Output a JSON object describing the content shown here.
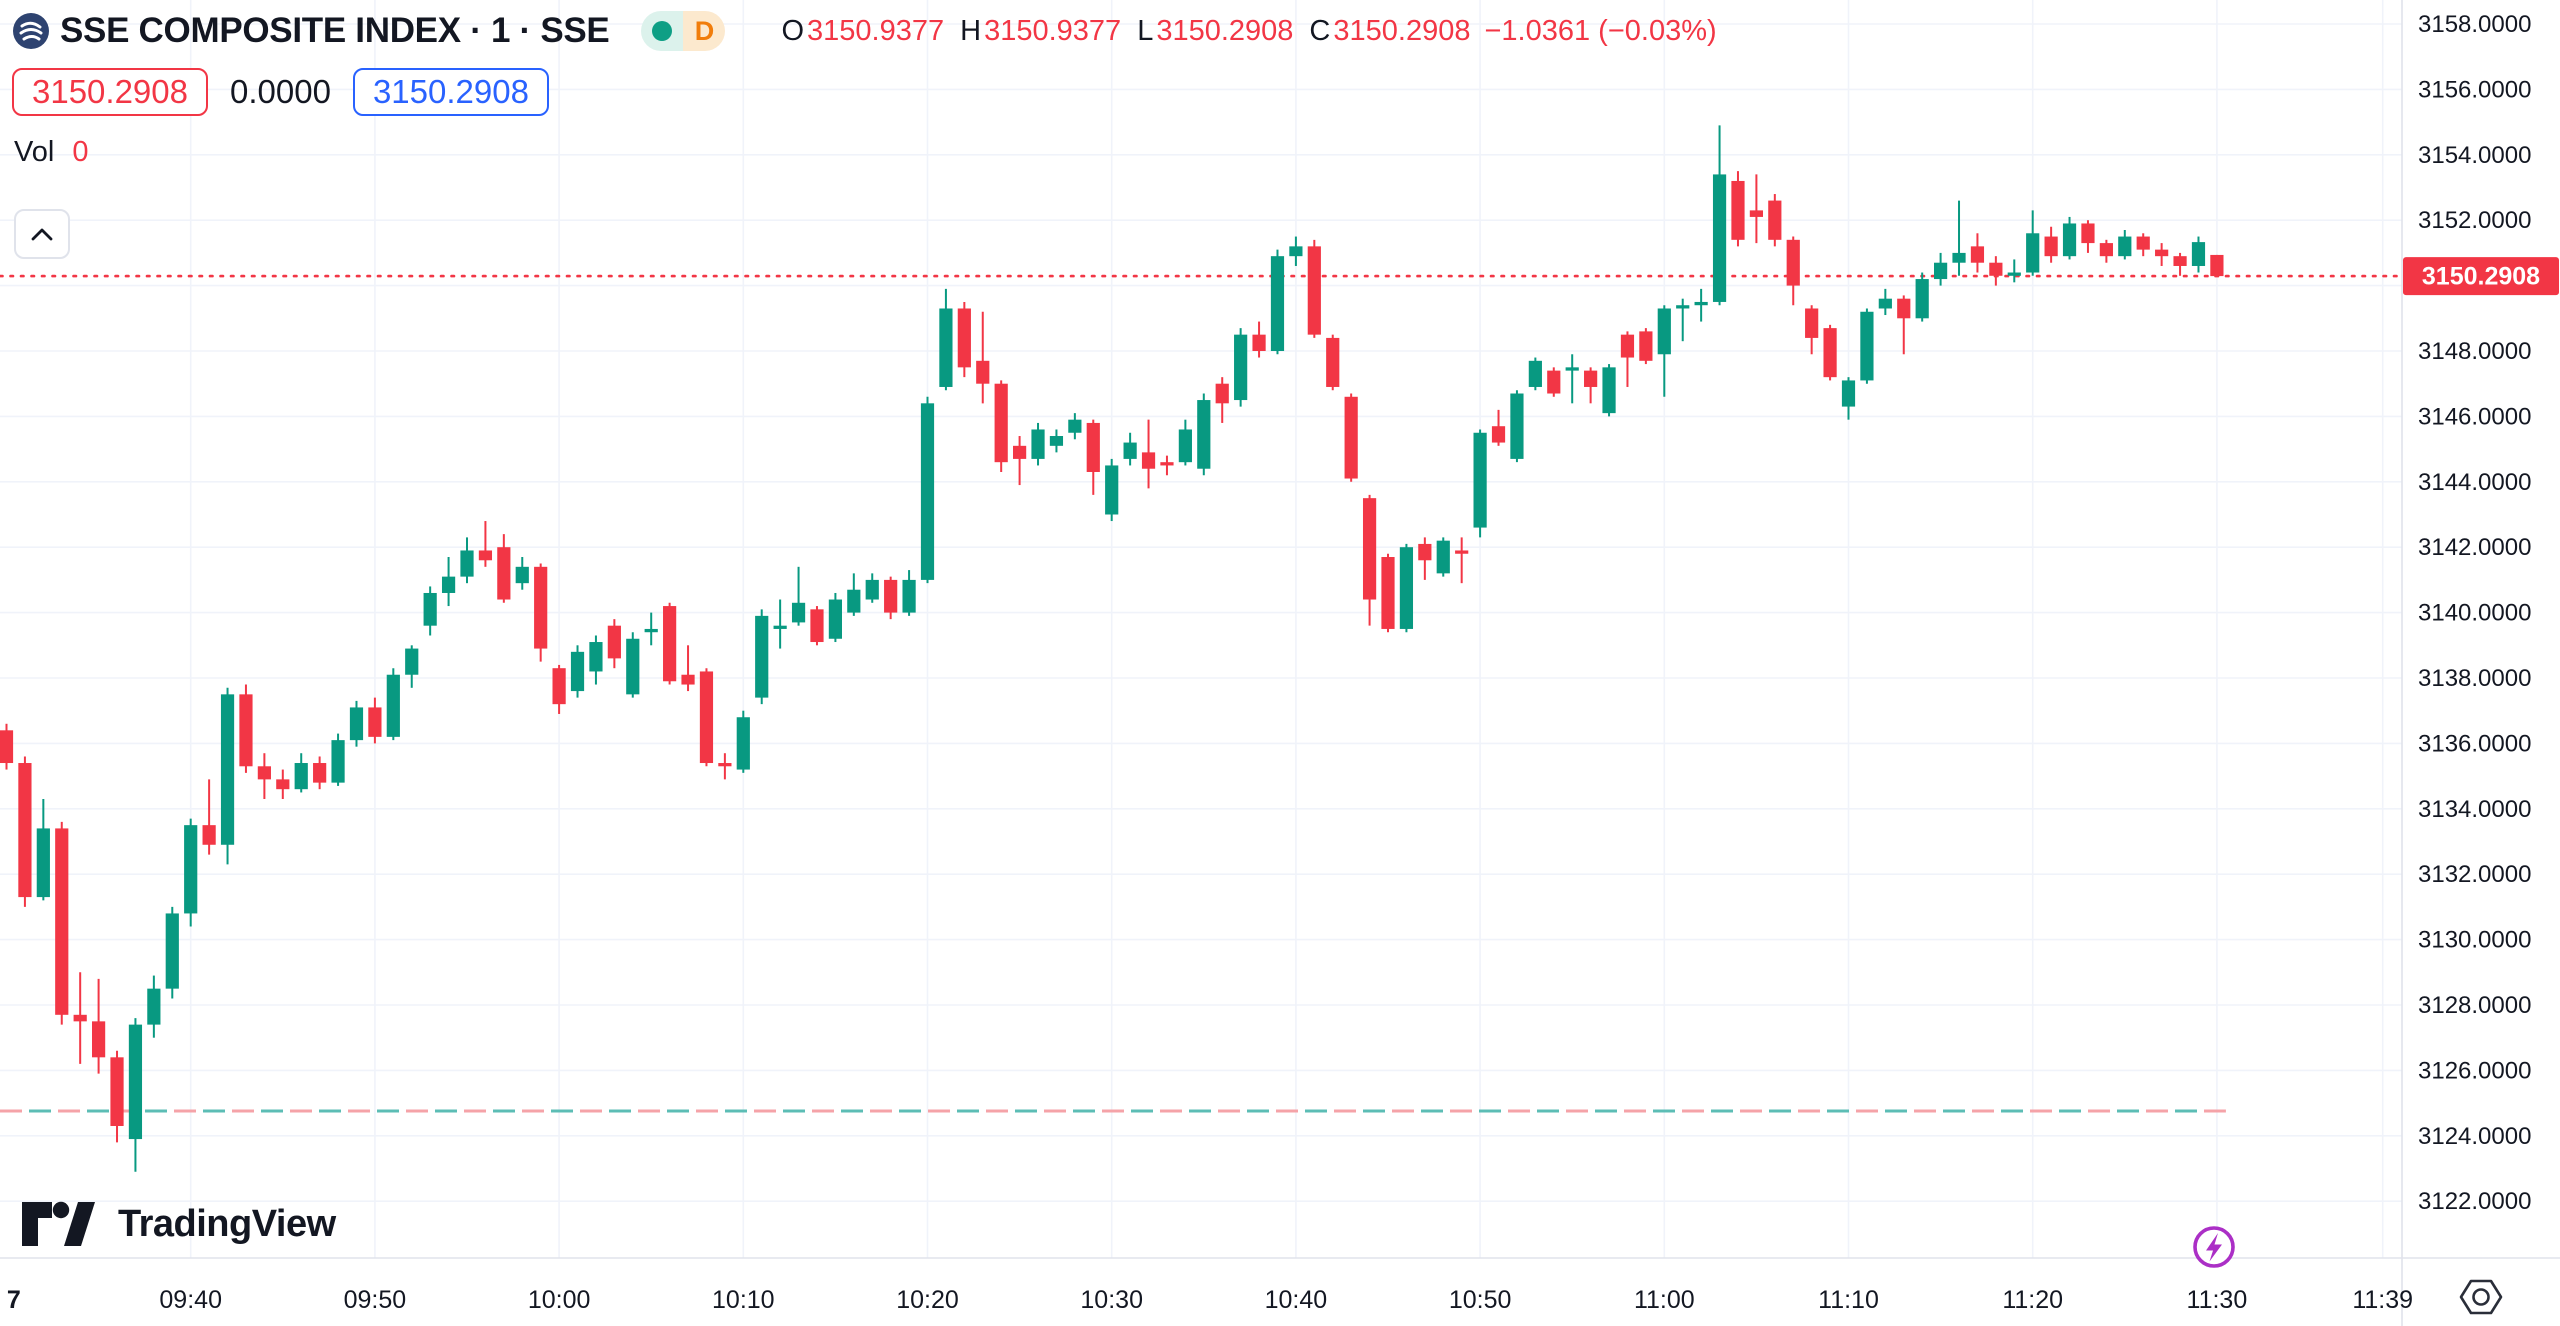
{
  "header": {
    "symbol_title": "SSE COMPOSITE INDEX · 1 · SSE",
    "market_status_letter": "D",
    "ohlc": {
      "o_label": "O",
      "o": "3150.9377",
      "h_label": "H",
      "h": "3150.9377",
      "l_label": "L",
      "l": "3150.2908",
      "c_label": "C",
      "c": "3150.2908",
      "change": "−1.0361 (−0.03%)"
    },
    "bid_badge": "3150.2908",
    "spread": "0.0000",
    "ask_badge": "3150.2908",
    "vol_label": "Vol",
    "vol_value": "0"
  },
  "footer": {
    "brand": "TradingView"
  },
  "colors": {
    "up": "#089981",
    "down": "#F23645",
    "blue": "#2962FF",
    "text": "#131722",
    "grid": "#F0F3FA",
    "axis_border": "#E0E3EB",
    "baseline_teal": "#5CBDB5",
    "baseline_pink": "#F5A3A8",
    "purple": "#AB2FC6",
    "icon_dark": "#2A2E39"
  },
  "chart_data": {
    "type": "candlestick",
    "title": "SSE COMPOSITE INDEX 1-minute candles",
    "legend_position": "top-left",
    "grid": true,
    "session_start": "09:30",
    "last_price": 3150.2908,
    "last_price_label": "3150.2908",
    "baseline_price": 3124.76,
    "y_axis_top": 3158,
    "y_axis_bottom": 3122,
    "y_ticks": [
      {
        "label": "3158.0000",
        "value": 3158
      },
      {
        "label": "3156.0000",
        "value": 3156
      },
      {
        "label": "3154.0000",
        "value": 3154
      },
      {
        "label": "3152.0000",
        "value": 3152
      },
      {
        "label": "3150.0000",
        "value": 3150
      },
      {
        "label": "3148.0000",
        "value": 3148
      },
      {
        "label": "3146.0000",
        "value": 3146
      },
      {
        "label": "3144.0000",
        "value": 3144
      },
      {
        "label": "3142.0000",
        "value": 3142
      },
      {
        "label": "3140.0000",
        "value": 3140
      },
      {
        "label": "3138.0000",
        "value": 3138
      },
      {
        "label": "3136.0000",
        "value": 3136
      },
      {
        "label": "3134.0000",
        "value": 3134
      },
      {
        "label": "3132.0000",
        "value": 3132
      },
      {
        "label": "3130.0000",
        "value": 3130
      },
      {
        "label": "3128.0000",
        "value": 3128
      },
      {
        "label": "3126.0000",
        "value": 3126
      },
      {
        "label": "3124.0000",
        "value": 3124
      },
      {
        "label": "3122.0000",
        "value": 3122
      }
    ],
    "x_ticks": [
      {
        "label": "7",
        "minute": 0.4,
        "grid": false,
        "bold": true
      },
      {
        "label": "09:40",
        "minute": 10,
        "grid": true
      },
      {
        "label": "09:50",
        "minute": 20,
        "grid": true
      },
      {
        "label": "10:00",
        "minute": 30,
        "grid": true
      },
      {
        "label": "10:10",
        "minute": 40,
        "grid": true
      },
      {
        "label": "10:20",
        "minute": 50,
        "grid": true
      },
      {
        "label": "10:30",
        "minute": 60,
        "grid": true
      },
      {
        "label": "10:40",
        "minute": 70,
        "grid": true
      },
      {
        "label": "10:50",
        "minute": 80,
        "grid": true
      },
      {
        "label": "11:00",
        "minute": 90,
        "grid": true
      },
      {
        "label": "11:10",
        "minute": 100,
        "grid": true
      },
      {
        "label": "11:20",
        "minute": 110,
        "grid": true
      },
      {
        "label": "11:30",
        "minute": 120,
        "grid": true
      },
      {
        "label": "11:39",
        "minute": 129,
        "grid": true
      }
    ],
    "candles": [
      [
        "09:30",
        3136.4,
        3136.6,
        3135.2,
        3135.4
      ],
      [
        "09:31",
        3135.4,
        3135.6,
        3131.0,
        3131.3
      ],
      [
        "09:32",
        3131.3,
        3134.3,
        3131.2,
        3133.4
      ],
      [
        "09:33",
        3133.4,
        3133.6,
        3127.4,
        3127.7
      ],
      [
        "09:34",
        3127.7,
        3129.0,
        3126.2,
        3127.5
      ],
      [
        "09:35",
        3127.5,
        3128.8,
        3125.9,
        3126.4
      ],
      [
        "09:36",
        3126.4,
        3126.6,
        3123.8,
        3124.3
      ],
      [
        "09:37",
        3123.9,
        3127.6,
        3122.9,
        3127.4
      ],
      [
        "09:38",
        3127.4,
        3128.9,
        3127.0,
        3128.5
      ],
      [
        "09:39",
        3128.5,
        3131.0,
        3128.2,
        3130.8
      ],
      [
        "09:40",
        3130.8,
        3133.7,
        3130.4,
        3133.5
      ],
      [
        "09:41",
        3133.5,
        3134.9,
        3132.6,
        3132.9
      ],
      [
        "09:42",
        3132.9,
        3137.7,
        3132.3,
        3137.5
      ],
      [
        "09:43",
        3137.5,
        3137.8,
        3135.1,
        3135.3
      ],
      [
        "09:44",
        3135.3,
        3135.7,
        3134.3,
        3134.9
      ],
      [
        "09:45",
        3134.9,
        3135.2,
        3134.3,
        3134.6
      ],
      [
        "09:46",
        3134.6,
        3135.7,
        3134.5,
        3135.4
      ],
      [
        "09:47",
        3135.4,
        3135.6,
        3134.6,
        3134.8
      ],
      [
        "09:48",
        3134.8,
        3136.3,
        3134.7,
        3136.1
      ],
      [
        "09:49",
        3136.1,
        3137.3,
        3135.9,
        3137.1
      ],
      [
        "09:50",
        3137.1,
        3137.4,
        3136.0,
        3136.2
      ],
      [
        "09:51",
        3136.2,
        3138.3,
        3136.1,
        3138.1
      ],
      [
        "09:52",
        3138.1,
        3139.0,
        3137.7,
        3138.9
      ],
      [
        "09:53",
        3139.6,
        3140.8,
        3139.3,
        3140.6
      ],
      [
        "09:54",
        3140.6,
        3141.7,
        3140.2,
        3141.1
      ],
      [
        "09:55",
        3141.1,
        3142.3,
        3140.9,
        3141.9
      ],
      [
        "09:56",
        3141.9,
        3142.8,
        3141.4,
        3141.6
      ],
      [
        "09:57",
        3142.0,
        3142.4,
        3140.3,
        3140.4
      ],
      [
        "09:58",
        3140.9,
        3141.7,
        3140.7,
        3141.4
      ],
      [
        "09:59",
        3141.4,
        3141.5,
        3138.5,
        3138.9
      ],
      [
        "10:00",
        3138.3,
        3138.4,
        3136.9,
        3137.2
      ],
      [
        "10:01",
        3137.6,
        3139.0,
        3137.4,
        3138.8
      ],
      [
        "10:02",
        3138.2,
        3139.3,
        3137.8,
        3139.1
      ],
      [
        "10:03",
        3139.6,
        3139.8,
        3138.3,
        3138.6
      ],
      [
        "10:04",
        3137.5,
        3139.4,
        3137.4,
        3139.2
      ],
      [
        "10:05",
        3139.4,
        3140.0,
        3139.0,
        3139.5
      ],
      [
        "10:06",
        3140.2,
        3140.3,
        3137.8,
        3137.9
      ],
      [
        "10:07",
        3138.1,
        3139.0,
        3137.6,
        3137.8
      ],
      [
        "10:08",
        3138.2,
        3138.3,
        3135.3,
        3135.4
      ],
      [
        "10:09",
        3135.4,
        3135.7,
        3134.9,
        3135.3
      ],
      [
        "10:10",
        3135.2,
        3137.0,
        3135.1,
        3136.8
      ],
      [
        "10:11",
        3137.4,
        3140.1,
        3137.2,
        3139.9
      ],
      [
        "10:12",
        3139.5,
        3140.4,
        3138.9,
        3139.6
      ],
      [
        "10:13",
        3139.7,
        3141.4,
        3139.6,
        3140.3
      ],
      [
        "10:14",
        3140.1,
        3140.2,
        3139.0,
        3139.1
      ],
      [
        "10:15",
        3139.2,
        3140.6,
        3139.1,
        3140.4
      ],
      [
        "10:16",
        3140.0,
        3141.2,
        3139.9,
        3140.7
      ],
      [
        "10:17",
        3140.4,
        3141.2,
        3140.3,
        3141.0
      ],
      [
        "10:18",
        3141.0,
        3141.1,
        3139.8,
        3140.0
      ],
      [
        "10:19",
        3140.0,
        3141.3,
        3139.9,
        3141.0
      ],
      [
        "10:20",
        3141.0,
        3146.6,
        3140.9,
        3146.4
      ],
      [
        "10:21",
        3146.9,
        3149.9,
        3146.8,
        3149.3
      ],
      [
        "10:22",
        3149.3,
        3149.5,
        3147.2,
        3147.5
      ],
      [
        "10:23",
        3147.7,
        3149.2,
        3146.4,
        3147.0
      ],
      [
        "10:24",
        3147.0,
        3147.1,
        3144.3,
        3144.6
      ],
      [
        "10:25",
        3145.1,
        3145.4,
        3143.9,
        3144.7
      ],
      [
        "10:26",
        3144.7,
        3145.8,
        3144.5,
        3145.6
      ],
      [
        "10:27",
        3145.1,
        3145.6,
        3144.9,
        3145.4
      ],
      [
        "10:28",
        3145.5,
        3146.1,
        3145.3,
        3145.9
      ],
      [
        "10:29",
        3145.8,
        3145.9,
        3143.6,
        3144.3
      ],
      [
        "10:30",
        3143.0,
        3144.7,
        3142.8,
        3144.5
      ],
      [
        "10:31",
        3144.7,
        3145.5,
        3144.5,
        3145.2
      ],
      [
        "10:32",
        3144.9,
        3145.9,
        3143.8,
        3144.4
      ],
      [
        "10:33",
        3144.6,
        3144.8,
        3144.2,
        3144.5
      ],
      [
        "10:34",
        3144.6,
        3145.9,
        3144.5,
        3145.6
      ],
      [
        "10:35",
        3144.4,
        3146.7,
        3144.2,
        3146.5
      ],
      [
        "10:36",
        3147.0,
        3147.2,
        3145.8,
        3146.4
      ],
      [
        "10:37",
        3146.5,
        3148.7,
        3146.3,
        3148.5
      ],
      [
        "10:38",
        3148.5,
        3148.9,
        3147.8,
        3148.0
      ],
      [
        "10:39",
        3148.0,
        3151.1,
        3147.9,
        3150.9
      ],
      [
        "10:40",
        3150.9,
        3151.5,
        3150.6,
        3151.2
      ],
      [
        "10:41",
        3151.2,
        3151.4,
        3148.4,
        3148.5
      ],
      [
        "10:42",
        3148.4,
        3148.5,
        3146.8,
        3146.9
      ],
      [
        "10:43",
        3146.6,
        3146.7,
        3144.0,
        3144.1
      ],
      [
        "10:44",
        3143.5,
        3143.6,
        3139.6,
        3140.4
      ],
      [
        "10:45",
        3141.7,
        3141.8,
        3139.4,
        3139.5
      ],
      [
        "10:46",
        3139.5,
        3142.1,
        3139.4,
        3142.0
      ],
      [
        "10:47",
        3142.1,
        3142.3,
        3141.0,
        3141.6
      ],
      [
        "10:48",
        3141.2,
        3142.3,
        3141.1,
        3142.2
      ],
      [
        "10:49",
        3141.9,
        3142.3,
        3140.9,
        3141.8
      ],
      [
        "10:50",
        3142.6,
        3145.6,
        3142.3,
        3145.5
      ],
      [
        "10:51",
        3145.7,
        3146.2,
        3145.1,
        3145.2
      ],
      [
        "10:52",
        3144.7,
        3146.8,
        3144.6,
        3146.7
      ],
      [
        "10:53",
        3146.9,
        3147.8,
        3146.8,
        3147.7
      ],
      [
        "10:54",
        3147.4,
        3147.5,
        3146.6,
        3146.7
      ],
      [
        "10:55",
        3147.4,
        3147.9,
        3146.4,
        3147.5
      ],
      [
        "10:56",
        3147.4,
        3147.5,
        3146.4,
        3146.9
      ],
      [
        "10:57",
        3146.1,
        3147.6,
        3146.0,
        3147.5
      ],
      [
        "10:58",
        3148.5,
        3148.6,
        3146.9,
        3147.8
      ],
      [
        "10:59",
        3148.6,
        3148.7,
        3147.6,
        3147.7
      ],
      [
        "11:00",
        3147.9,
        3149.4,
        3146.6,
        3149.3
      ],
      [
        "11:01",
        3149.3,
        3149.6,
        3148.3,
        3149.4
      ],
      [
        "11:02",
        3149.4,
        3149.9,
        3148.9,
        3149.5
      ],
      [
        "11:03",
        3149.5,
        3154.9,
        3149.4,
        3153.4
      ],
      [
        "11:04",
        3153.2,
        3153.5,
        3151.2,
        3151.4
      ],
      [
        "11:05",
        3152.3,
        3153.4,
        3151.3,
        3152.1
      ],
      [
        "11:06",
        3152.6,
        3152.8,
        3151.2,
        3151.4
      ],
      [
        "11:07",
        3151.4,
        3151.5,
        3149.4,
        3150.0
      ],
      [
        "11:08",
        3149.3,
        3149.4,
        3147.9,
        3148.4
      ],
      [
        "11:09",
        3148.7,
        3148.8,
        3147.1,
        3147.2
      ],
      [
        "11:10",
        3146.3,
        3147.2,
        3145.9,
        3147.1
      ],
      [
        "11:11",
        3147.1,
        3149.3,
        3147.0,
        3149.2
      ],
      [
        "11:12",
        3149.3,
        3149.9,
        3149.1,
        3149.6
      ],
      [
        "11:13",
        3149.6,
        3149.7,
        3147.9,
        3149.0
      ],
      [
        "11:14",
        3149.0,
        3150.4,
        3148.9,
        3150.2
      ],
      [
        "11:15",
        3150.2,
        3151.0,
        3150.0,
        3150.7
      ],
      [
        "11:16",
        3150.7,
        3152.6,
        3150.3,
        3151.0
      ],
      [
        "11:17",
        3151.2,
        3151.6,
        3150.4,
        3150.7
      ],
      [
        "11:18",
        3150.7,
        3150.9,
        3150.0,
        3150.3
      ],
      [
        "11:19",
        3150.3,
        3150.8,
        3150.1,
        3150.4
      ],
      [
        "11:20",
        3150.4,
        3152.3,
        3150.3,
        3151.6
      ],
      [
        "11:21",
        3151.5,
        3151.8,
        3150.7,
        3150.9
      ],
      [
        "11:22",
        3150.9,
        3152.1,
        3150.8,
        3151.9
      ],
      [
        "11:23",
        3151.9,
        3152.0,
        3151.0,
        3151.3
      ],
      [
        "11:24",
        3151.3,
        3151.4,
        3150.7,
        3150.9
      ],
      [
        "11:25",
        3150.9,
        3151.7,
        3150.8,
        3151.5
      ],
      [
        "11:26",
        3151.5,
        3151.6,
        3150.9,
        3151.1
      ],
      [
        "11:27",
        3151.1,
        3151.3,
        3150.6,
        3150.9
      ],
      [
        "11:28",
        3150.9,
        3151.0,
        3150.3,
        3150.6
      ],
      [
        "11:29",
        3150.6,
        3151.5,
        3150.4,
        3151.33
      ],
      [
        "11:30",
        3150.9377,
        3150.9377,
        3150.2908,
        3150.2908
      ]
    ]
  }
}
